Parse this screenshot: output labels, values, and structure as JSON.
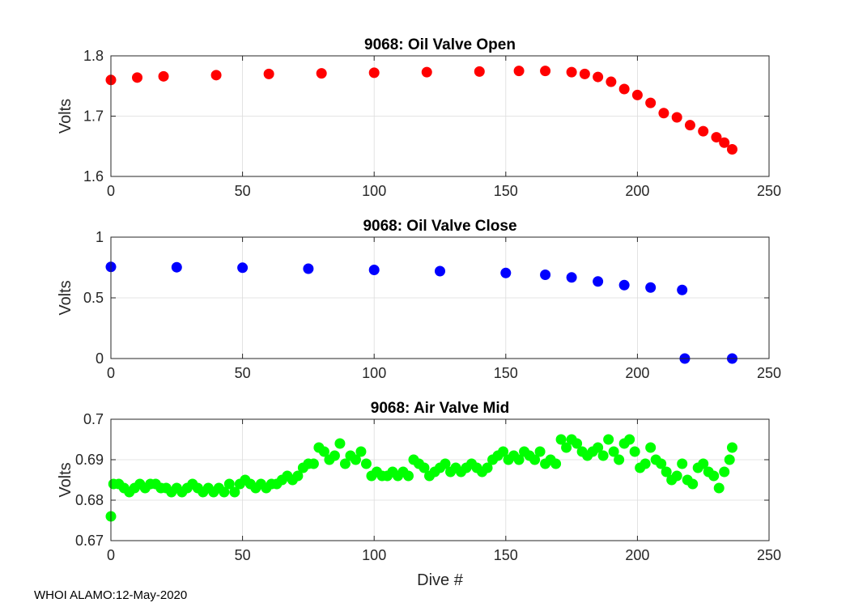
{
  "footer": "WHOI ALAMO:12-May-2020",
  "chart_data": [
    {
      "type": "scatter",
      "title": "9068: Oil Valve Open",
      "xlabel": "",
      "ylabel": "Volts",
      "xlim": [
        0,
        250
      ],
      "ylim": [
        1.6,
        1.8
      ],
      "xticks": [
        "0",
        "50",
        "100",
        "150",
        "200",
        "250"
      ],
      "yticks": [
        "1.6",
        "1.7",
        "1.8"
      ],
      "grid": true,
      "color": "#ff0000",
      "points": [
        [
          0,
          1.76
        ],
        [
          10,
          1.764
        ],
        [
          20,
          1.766
        ],
        [
          40,
          1.768
        ],
        [
          60,
          1.77
        ],
        [
          80,
          1.771
        ],
        [
          100,
          1.772
        ],
        [
          120,
          1.773
        ],
        [
          140,
          1.774
        ],
        [
          155,
          1.775
        ],
        [
          165,
          1.775
        ],
        [
          175,
          1.773
        ],
        [
          180,
          1.77
        ],
        [
          185,
          1.765
        ],
        [
          190,
          1.757
        ],
        [
          195,
          1.745
        ],
        [
          200,
          1.735
        ],
        [
          205,
          1.722
        ],
        [
          210,
          1.705
        ],
        [
          215,
          1.698
        ],
        [
          220,
          1.685
        ],
        [
          225,
          1.675
        ],
        [
          230,
          1.665
        ],
        [
          233,
          1.656
        ],
        [
          236,
          1.645
        ]
      ]
    },
    {
      "type": "scatter",
      "title": "9068: Oil Valve Close",
      "xlabel": "",
      "ylabel": "Volts",
      "xlim": [
        0,
        250
      ],
      "ylim": [
        0,
        1
      ],
      "xticks": [
        "0",
        "50",
        "100",
        "150",
        "200",
        "250"
      ],
      "yticks": [
        "0",
        "0.5",
        "1"
      ],
      "grid": true,
      "color": "#0000ff",
      "points": [
        [
          0,
          0.755
        ],
        [
          25,
          0.752
        ],
        [
          50,
          0.748
        ],
        [
          75,
          0.74
        ],
        [
          100,
          0.73
        ],
        [
          125,
          0.72
        ],
        [
          150,
          0.705
        ],
        [
          165,
          0.69
        ],
        [
          175,
          0.668
        ],
        [
          185,
          0.635
        ],
        [
          195,
          0.605
        ],
        [
          205,
          0.585
        ],
        [
          217,
          0.565
        ],
        [
          218,
          0.0
        ],
        [
          236,
          0.0
        ]
      ]
    },
    {
      "type": "scatter",
      "title": "9068: Air Valve Mid",
      "xlabel": "Dive #",
      "ylabel": "Volts",
      "xlim": [
        0,
        250
      ],
      "ylim": [
        0.67,
        0.7
      ],
      "xticks": [
        "0",
        "50",
        "100",
        "150",
        "200",
        "250"
      ],
      "yticks": [
        "0.67",
        "0.68",
        "0.69",
        "0.7"
      ],
      "grid": true,
      "color": "#00ff00",
      "points": [
        [
          0,
          0.676
        ],
        [
          1,
          0.684
        ],
        [
          3,
          0.684
        ],
        [
          5,
          0.683
        ],
        [
          7,
          0.682
        ],
        [
          9,
          0.683
        ],
        [
          11,
          0.684
        ],
        [
          13,
          0.683
        ],
        [
          15,
          0.684
        ],
        [
          17,
          0.684
        ],
        [
          19,
          0.683
        ],
        [
          21,
          0.683
        ],
        [
          23,
          0.682
        ],
        [
          25,
          0.683
        ],
        [
          27,
          0.682
        ],
        [
          29,
          0.683
        ],
        [
          31,
          0.684
        ],
        [
          33,
          0.683
        ],
        [
          35,
          0.682
        ],
        [
          37,
          0.683
        ],
        [
          39,
          0.682
        ],
        [
          41,
          0.683
        ],
        [
          43,
          0.682
        ],
        [
          45,
          0.684
        ],
        [
          47,
          0.682
        ],
        [
          49,
          0.684
        ],
        [
          51,
          0.685
        ],
        [
          53,
          0.684
        ],
        [
          55,
          0.683
        ],
        [
          57,
          0.684
        ],
        [
          59,
          0.683
        ],
        [
          61,
          0.684
        ],
        [
          63,
          0.684
        ],
        [
          65,
          0.685
        ],
        [
          67,
          0.686
        ],
        [
          69,
          0.685
        ],
        [
          71,
          0.686
        ],
        [
          73,
          0.688
        ],
        [
          75,
          0.689
        ],
        [
          77,
          0.689
        ],
        [
          79,
          0.693
        ],
        [
          81,
          0.692
        ],
        [
          83,
          0.69
        ],
        [
          85,
          0.691
        ],
        [
          87,
          0.694
        ],
        [
          89,
          0.689
        ],
        [
          91,
          0.691
        ],
        [
          93,
          0.69
        ],
        [
          95,
          0.692
        ],
        [
          97,
          0.689
        ],
        [
          99,
          0.686
        ],
        [
          101,
          0.687
        ],
        [
          103,
          0.686
        ],
        [
          105,
          0.686
        ],
        [
          107,
          0.687
        ],
        [
          109,
          0.686
        ],
        [
          111,
          0.687
        ],
        [
          113,
          0.686
        ],
        [
          115,
          0.69
        ],
        [
          117,
          0.689
        ],
        [
          119,
          0.688
        ],
        [
          121,
          0.686
        ],
        [
          123,
          0.687
        ],
        [
          125,
          0.688
        ],
        [
          127,
          0.689
        ],
        [
          129,
          0.687
        ],
        [
          131,
          0.688
        ],
        [
          133,
          0.687
        ],
        [
          135,
          0.688
        ],
        [
          137,
          0.689
        ],
        [
          139,
          0.688
        ],
        [
          141,
          0.687
        ],
        [
          143,
          0.688
        ],
        [
          145,
          0.69
        ],
        [
          147,
          0.691
        ],
        [
          149,
          0.692
        ],
        [
          151,
          0.69
        ],
        [
          153,
          0.691
        ],
        [
          155,
          0.69
        ],
        [
          157,
          0.692
        ],
        [
          159,
          0.691
        ],
        [
          161,
          0.69
        ],
        [
          163,
          0.692
        ],
        [
          165,
          0.689
        ],
        [
          167,
          0.69
        ],
        [
          169,
          0.689
        ],
        [
          171,
          0.695
        ],
        [
          173,
          0.693
        ],
        [
          175,
          0.695
        ],
        [
          177,
          0.694
        ],
        [
          179,
          0.692
        ],
        [
          181,
          0.691
        ],
        [
          183,
          0.692
        ],
        [
          185,
          0.693
        ],
        [
          187,
          0.691
        ],
        [
          189,
          0.695
        ],
        [
          191,
          0.692
        ],
        [
          193,
          0.69
        ],
        [
          195,
          0.694
        ],
        [
          197,
          0.695
        ],
        [
          199,
          0.692
        ],
        [
          201,
          0.688
        ],
        [
          203,
          0.689
        ],
        [
          205,
          0.693
        ],
        [
          207,
          0.69
        ],
        [
          209,
          0.689
        ],
        [
          211,
          0.687
        ],
        [
          213,
          0.685
        ],
        [
          215,
          0.686
        ],
        [
          217,
          0.689
        ],
        [
          219,
          0.685
        ],
        [
          221,
          0.684
        ],
        [
          223,
          0.688
        ],
        [
          225,
          0.689
        ],
        [
          227,
          0.687
        ],
        [
          229,
          0.686
        ],
        [
          231,
          0.683
        ],
        [
          233,
          0.687
        ],
        [
          235,
          0.69
        ],
        [
          236,
          0.693
        ]
      ]
    }
  ]
}
